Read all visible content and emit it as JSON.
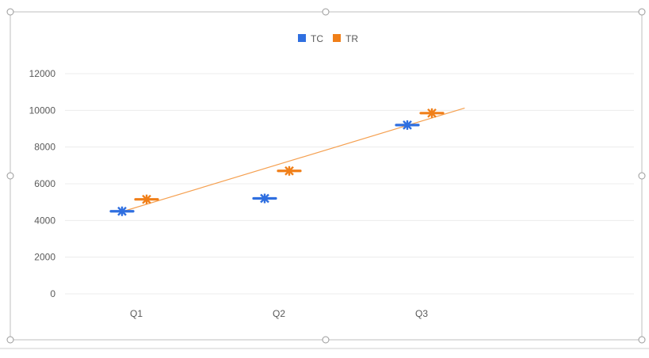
{
  "chart_data": {
    "type": "scatter",
    "categories": [
      "Q1",
      "Q2",
      "Q3"
    ],
    "series": [
      {
        "name": "TC",
        "color": "#2f6fe0",
        "marker": "star-dash",
        "values": [
          4500,
          5200,
          9200
        ]
      },
      {
        "name": "TR",
        "color": "#f07f19",
        "marker": "star-dash",
        "values": [
          5150,
          6700,
          9850
        ]
      }
    ],
    "trendline": {
      "series": "TR",
      "type": "linear",
      "color": "#f5a050"
    },
    "title": "",
    "xlabel": "",
    "ylabel": "",
    "ylim": [
      0,
      12000
    ],
    "yticks": [
      0,
      2000,
      4000,
      6000,
      8000,
      10000,
      12000
    ],
    "grid": true,
    "legend": "top"
  }
}
